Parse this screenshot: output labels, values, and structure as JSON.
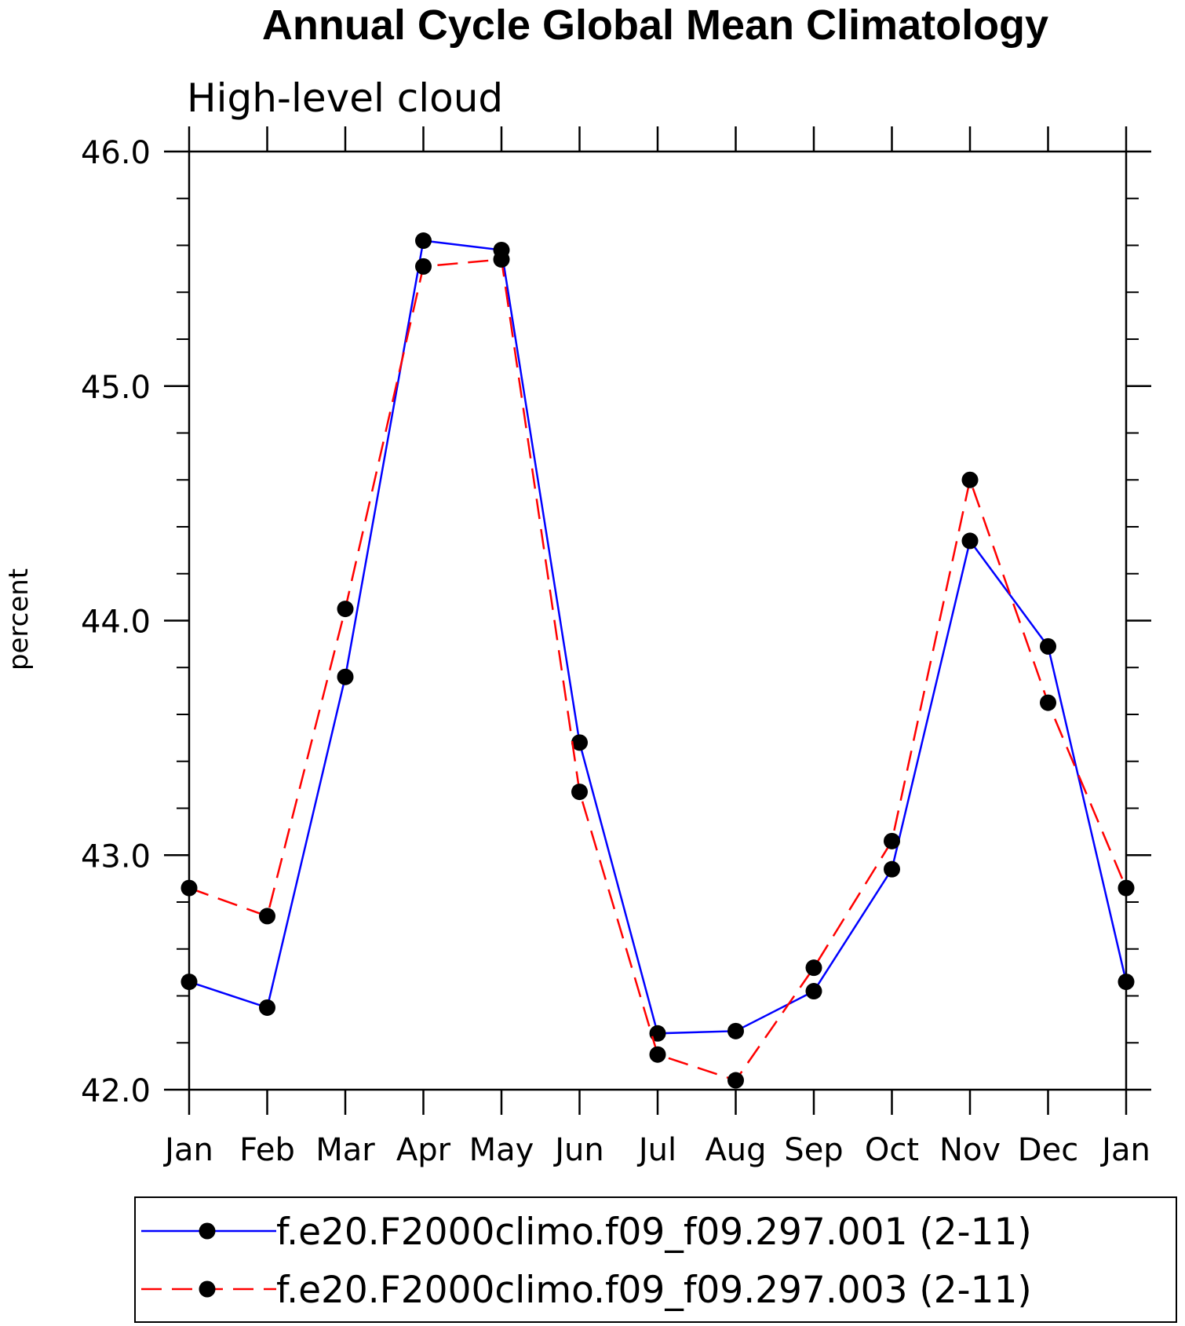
{
  "chart_data": {
    "type": "line",
    "title": "Annual Cycle Global Mean Climatology",
    "subtitle": "High-level cloud",
    "xlabel": "",
    "ylabel": "percent",
    "categories": [
      "Jan",
      "Feb",
      "Mar",
      "Apr",
      "May",
      "Jun",
      "Jul",
      "Aug",
      "Sep",
      "Oct",
      "Nov",
      "Dec",
      "Jan"
    ],
    "ylim": [
      42.0,
      46.0
    ],
    "yticks": [
      "42.0",
      "43.0",
      "44.0",
      "45.0",
      "46.0"
    ],
    "grid": false,
    "legend_position": "bottom",
    "series": [
      {
        "name": "f.e20.F2000climo.f09_f09.297.001 (2-11)",
        "color": "#0000ff",
        "dash": "solid",
        "marker": "filled-circle",
        "values": [
          42.46,
          42.35,
          43.76,
          45.62,
          45.58,
          43.48,
          42.24,
          42.25,
          42.42,
          42.94,
          44.34,
          43.89,
          42.46
        ]
      },
      {
        "name": "f.e20.F2000climo.f09_f09.297.003 (2-11)",
        "color": "#ff0000",
        "dash": "dashed",
        "marker": "filled-circle",
        "values": [
          42.86,
          42.74,
          44.05,
          45.51,
          45.54,
          43.27,
          42.15,
          42.04,
          42.52,
          43.06,
          44.6,
          43.65,
          42.86
        ]
      }
    ]
  }
}
